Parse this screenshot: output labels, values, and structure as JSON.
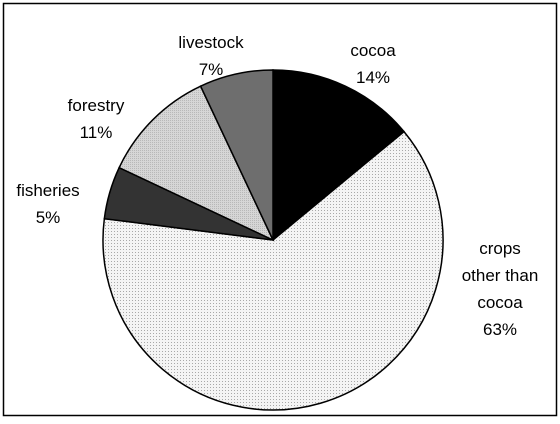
{
  "chart_data": {
    "type": "pie",
    "slices": [
      {
        "label": [
          "cocoa"
        ],
        "value": 14,
        "value_label": "14%",
        "color": "#000000"
      },
      {
        "label": [
          "crops",
          "other than",
          "cocoa"
        ],
        "value": 63,
        "value_label": "63%",
        "color": "#f2f2f2"
      },
      {
        "label": [
          "fisheries"
        ],
        "value": 5,
        "value_label": "5%",
        "color": "#333333"
      },
      {
        "label": [
          "forestry"
        ],
        "value": 11,
        "value_label": "11%",
        "color": "#d3d3d3"
      },
      {
        "label": [
          "livestock"
        ],
        "value": 7,
        "value_label": "7%",
        "color": "#6e6e6e"
      }
    ],
    "start_angle": "12 o'clock",
    "direction": "clockwise",
    "legend": "none"
  }
}
